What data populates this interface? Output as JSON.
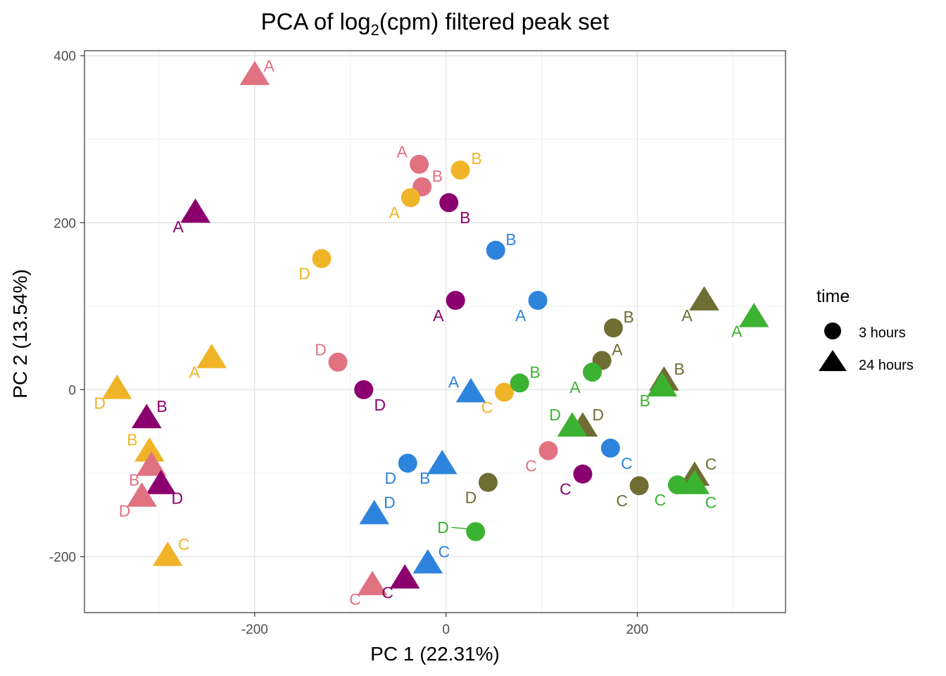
{
  "chart_data": {
    "type": "scatter",
    "title": "PCA of log",
    "title_sub": "2",
    "title_rest": "(cpm) filtered peak set",
    "xlabel": "PC 1 (22.31%)",
    "ylabel": "PC 2 (13.54%)",
    "xlim": [
      -378,
      355
    ],
    "ylim": [
      -267,
      406
    ],
    "xticks": [
      -200,
      0,
      200
    ],
    "yticks": [
      -200,
      0,
      200,
      400
    ],
    "xtick_labels": [
      "-200",
      "0",
      "200"
    ],
    "ytick_labels": [
      "-200",
      "0",
      "200",
      "400"
    ],
    "grid": true,
    "legend": {
      "title": "time",
      "position": "right",
      "items": [
        {
          "label": "3 hours",
          "shape": "circle"
        },
        {
          "label": "24 hours",
          "shape": "triangle"
        }
      ]
    },
    "colors": {
      "pink": "#e07282",
      "orange": "#f0b428",
      "purple": "#8b006e",
      "blue": "#2e84dc",
      "olive": "#6f6d34",
      "green": "#3cb232"
    },
    "points": [
      {
        "x": -200,
        "y": 378,
        "shape": "triangle",
        "color": "pink",
        "label": "A",
        "lx": -185,
        "ly": 388
      },
      {
        "x": -28,
        "y": 270,
        "shape": "circle",
        "color": "pink",
        "label": "A",
        "lx": -46,
        "ly": 285
      },
      {
        "x": -25,
        "y": 243,
        "shape": "circle",
        "color": "pink",
        "label": "B",
        "lx": -9,
        "ly": 256
      },
      {
        "x": 15,
        "y": 263,
        "shape": "circle",
        "color": "orange",
        "label": "B",
        "lx": 32,
        "ly": 277
      },
      {
        "x": -37,
        "y": 230,
        "shape": "circle",
        "color": "orange",
        "label": "A",
        "lx": -54,
        "ly": 212
      },
      {
        "x": 3,
        "y": 224,
        "shape": "circle",
        "color": "purple",
        "label": "B",
        "lx": 20,
        "ly": 206
      },
      {
        "x": -262,
        "y": 213,
        "shape": "triangle",
        "color": "purple",
        "label": "A",
        "lx": -280,
        "ly": 195
      },
      {
        "x": -130,
        "y": 157,
        "shape": "circle",
        "color": "orange",
        "label": "D",
        "lx": -148,
        "ly": 139
      },
      {
        "x": 52,
        "y": 167,
        "shape": "circle",
        "color": "blue",
        "label": "B",
        "lx": 68,
        "ly": 180
      },
      {
        "x": 10,
        "y": 107,
        "shape": "circle",
        "color": "purple",
        "label": "A",
        "lx": -8,
        "ly": 89
      },
      {
        "x": 96,
        "y": 107,
        "shape": "circle",
        "color": "blue",
        "label": "A",
        "lx": 78,
        "ly": 89
      },
      {
        "x": 175,
        "y": 74,
        "shape": "circle",
        "color": "olive",
        "label": "B",
        "lx": 191,
        "ly": 87
      },
      {
        "x": 270,
        "y": 108,
        "shape": "triangle",
        "color": "olive",
        "label": "A",
        "lx": 252,
        "ly": 89
      },
      {
        "x": 322,
        "y": 88,
        "shape": "triangle",
        "color": "green",
        "label": "A",
        "lx": 304,
        "ly": 70
      },
      {
        "x": 163,
        "y": 35,
        "shape": "circle",
        "color": "olive",
        "label": "A",
        "lx": 179,
        "ly": 48
      },
      {
        "x": 153,
        "y": 21,
        "shape": "circle",
        "color": "green",
        "label": "A",
        "lx": 135,
        "ly": 3
      },
      {
        "x": -245,
        "y": 39,
        "shape": "triangle",
        "color": "orange",
        "label": "A",
        "lx": -263,
        "ly": 21
      },
      {
        "x": -113,
        "y": 33,
        "shape": "circle",
        "color": "pink",
        "label": "D",
        "lx": -131,
        "ly": 48
      },
      {
        "x": -86,
        "y": 0,
        "shape": "circle",
        "color": "purple",
        "label": "D",
        "lx": -69,
        "ly": -18
      },
      {
        "x": -344,
        "y": 2,
        "shape": "triangle",
        "color": "orange",
        "label": "D",
        "lx": -362,
        "ly": -16
      },
      {
        "x": 26,
        "y": -2,
        "shape": "triangle",
        "color": "blue",
        "label": "A",
        "lx": 8,
        "ly": 9
      },
      {
        "x": 61,
        "y": -3,
        "shape": "circle",
        "color": "orange",
        "label": "C",
        "lx": 43,
        "ly": -21
      },
      {
        "x": 77,
        "y": 8,
        "shape": "circle",
        "color": "green",
        "label": "B",
        "lx": 93,
        "ly": 21
      },
      {
        "x": 228,
        "y": 12,
        "shape": "triangle",
        "color": "olive",
        "label": "B",
        "lx": 244,
        "ly": 25
      },
      {
        "x": 226,
        "y": 5,
        "shape": "triangle",
        "color": "green",
        "label": "B",
        "lx": 208,
        "ly": -13
      },
      {
        "x": -313,
        "y": -33,
        "shape": "triangle",
        "color": "purple",
        "label": "B",
        "lx": -297,
        "ly": -20
      },
      {
        "x": -310,
        "y": -73,
        "shape": "triangle",
        "color": "orange",
        "label": "B",
        "lx": -328,
        "ly": -60
      },
      {
        "x": -308,
        "y": -90,
        "shape": "triangle",
        "color": "pink",
        "label": "B",
        "lx": -326,
        "ly": -108
      },
      {
        "x": -298,
        "y": -112,
        "shape": "triangle",
        "color": "purple",
        "label": "D",
        "lx": -281,
        "ly": -130
      },
      {
        "x": -318,
        "y": -127,
        "shape": "triangle",
        "color": "pink",
        "label": "D",
        "lx": -336,
        "ly": -145
      },
      {
        "x": 143,
        "y": -43,
        "shape": "triangle",
        "color": "olive",
        "label": "D",
        "lx": 159,
        "ly": -30
      },
      {
        "x": 132,
        "y": -43,
        "shape": "triangle",
        "color": "green",
        "label": "D",
        "lx": 114,
        "ly": -30
      },
      {
        "x": 172,
        "y": -70,
        "shape": "circle",
        "color": "blue",
        "label": "C",
        "lx": 189,
        "ly": -88
      },
      {
        "x": 107,
        "y": -73,
        "shape": "circle",
        "color": "pink",
        "label": "C",
        "lx": 89,
        "ly": -91
      },
      {
        "x": -40,
        "y": -88,
        "shape": "circle",
        "color": "blue",
        "label": "D",
        "lx": -58,
        "ly": -106
      },
      {
        "x": -4,
        "y": -88,
        "shape": "triangle",
        "color": "blue",
        "label": "B",
        "lx": -22,
        "ly": -106
      },
      {
        "x": 143,
        "y": -101,
        "shape": "circle",
        "color": "purple",
        "label": "C",
        "lx": 125,
        "ly": -119
      },
      {
        "x": 44,
        "y": -111,
        "shape": "circle",
        "color": "olive",
        "label": "D",
        "lx": 26,
        "ly": -129
      },
      {
        "x": 202,
        "y": -115,
        "shape": "circle",
        "color": "olive",
        "label": "C",
        "lx": 184,
        "ly": -133
      },
      {
        "x": 260,
        "y": -102,
        "shape": "triangle",
        "color": "olive",
        "label": "C",
        "lx": 277,
        "ly": -89
      },
      {
        "x": 242,
        "y": -114,
        "shape": "circle",
        "color": "green",
        "label": "C",
        "lx": 224,
        "ly": -132
      },
      {
        "x": 260,
        "y": -112,
        "shape": "triangle",
        "color": "green",
        "label": "C",
        "lx": 277,
        "ly": -135
      },
      {
        "x": -75,
        "y": -148,
        "shape": "triangle",
        "color": "blue",
        "label": "D",
        "lx": -59,
        "ly": -135
      },
      {
        "x": 31,
        "y": -170,
        "shape": "circle",
        "color": "green",
        "label": "D",
        "lx": -3,
        "ly": -165,
        "segment": true
      },
      {
        "x": -291,
        "y": -198,
        "shape": "triangle",
        "color": "orange",
        "label": "C",
        "lx": -274,
        "ly": -185
      },
      {
        "x": -19,
        "y": -207,
        "shape": "triangle",
        "color": "blue",
        "label": "C",
        "lx": -2,
        "ly": -194
      },
      {
        "x": -43,
        "y": -225,
        "shape": "triangle",
        "color": "purple",
        "label": "C",
        "lx": -61,
        "ly": -243
      },
      {
        "x": -77,
        "y": -233,
        "shape": "triangle",
        "color": "pink",
        "label": "C",
        "lx": -95,
        "ly": -251
      }
    ]
  }
}
